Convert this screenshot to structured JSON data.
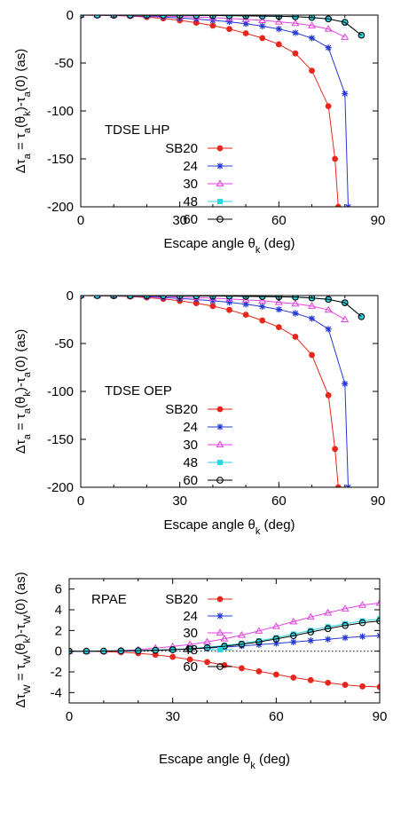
{
  "chart_data": [
    {
      "type": "line",
      "title": "",
      "xlabel": "Escape angle θk (deg)",
      "ylabel": "Δτa = τa(θk)-τa(0) (as)",
      "xlim": [
        0,
        90
      ],
      "ylim": [
        -200,
        0
      ],
      "xticks": [
        "0",
        "30",
        "60",
        "90"
      ],
      "yticks": [
        "0",
        "-50",
        "-100",
        "-150",
        "-200"
      ],
      "legend_title": "TDSE LHP",
      "legend_position": "bottom-left",
      "grid": false,
      "series": [
        {
          "name": "SB20",
          "color": "#e8261c",
          "marker": "dot",
          "x": [
            0,
            5,
            10,
            15,
            20,
            25,
            30,
            35,
            40,
            45,
            50,
            55,
            60,
            65,
            70,
            75,
            77,
            78
          ],
          "y": [
            0,
            -0.2,
            -0.5,
            -1.0,
            -2.0,
            -3.5,
            -5.5,
            -8,
            -11,
            -14.5,
            -19,
            -24,
            -30.5,
            -40,
            -58,
            -95,
            -150,
            -200
          ]
        },
        {
          "name": "24",
          "color": "#2538d6",
          "marker": "star",
          "x": [
            0,
            5,
            10,
            15,
            20,
            25,
            30,
            35,
            40,
            45,
            50,
            55,
            60,
            65,
            70,
            75,
            80,
            81
          ],
          "y": [
            0,
            -0.1,
            -0.3,
            -0.6,
            -1.2,
            -2.0,
            -3.0,
            -4.2,
            -5.5,
            -7,
            -9,
            -11.5,
            -14.5,
            -18.5,
            -24,
            -34,
            -82,
            -200
          ]
        },
        {
          "name": "30",
          "color": "#e040e0",
          "marker": "triangle",
          "x": [
            0,
            5,
            10,
            15,
            20,
            25,
            30,
            35,
            40,
            45,
            50,
            55,
            60,
            65,
            70,
            75,
            80
          ],
          "y": [
            0,
            -0.05,
            -0.15,
            -0.3,
            -0.6,
            -1.0,
            -1.5,
            -2.0,
            -2.7,
            -3.5,
            -4.5,
            -5.5,
            -7,
            -8.5,
            -11,
            -14.5,
            -23
          ]
        },
        {
          "name": "48",
          "color": "#26d6e0",
          "marker": "square",
          "x": [
            0,
            5,
            10,
            15,
            20,
            25,
            30,
            35,
            40,
            45,
            50,
            55,
            60,
            65,
            70,
            75,
            80,
            85
          ],
          "y": [
            0,
            0,
            -0.05,
            -0.1,
            -0.15,
            -0.2,
            -0.3,
            -0.4,
            -0.5,
            -0.6,
            -0.8,
            -1.0,
            -1.3,
            -1.7,
            -2.5,
            -4,
            -7.5,
            -21
          ]
        },
        {
          "name": "60",
          "color": "#000000",
          "marker": "circle",
          "x": [
            0,
            5,
            10,
            15,
            20,
            25,
            30,
            35,
            40,
            45,
            50,
            55,
            60,
            65,
            70,
            75,
            80,
            85
          ],
          "y": [
            0,
            0,
            -0.05,
            -0.1,
            -0.15,
            -0.2,
            -0.3,
            -0.4,
            -0.5,
            -0.6,
            -0.8,
            -1.0,
            -1.3,
            -1.7,
            -2.5,
            -4,
            -7.5,
            -21
          ]
        }
      ]
    },
    {
      "type": "line",
      "title": "",
      "xlabel": "Escape angle θk (deg)",
      "ylabel": "Δτa = τa(θk)-τa(0) (as)",
      "xlim": [
        0,
        90
      ],
      "ylim": [
        -200,
        0
      ],
      "xticks": [
        "0",
        "30",
        "60",
        "90"
      ],
      "yticks": [
        "0",
        "-50",
        "-100",
        "-150",
        "-200"
      ],
      "legend_title": "TDSE OEP",
      "legend_position": "bottom-left",
      "grid": false,
      "series": [
        {
          "name": "SB20",
          "color": "#e8261c",
          "marker": "dot",
          "x": [
            0,
            5,
            10,
            15,
            20,
            25,
            30,
            35,
            40,
            45,
            50,
            55,
            60,
            65,
            70,
            75,
            77,
            78
          ],
          "y": [
            0,
            -0.2,
            -0.5,
            -1.0,
            -2.0,
            -3.5,
            -5.5,
            -8,
            -11,
            -15,
            -20,
            -26,
            -33,
            -43,
            -62,
            -104,
            -160,
            -200
          ]
        },
        {
          "name": "24",
          "color": "#2538d6",
          "marker": "star",
          "x": [
            0,
            5,
            10,
            15,
            20,
            25,
            30,
            35,
            40,
            45,
            50,
            55,
            60,
            65,
            70,
            75,
            80,
            81
          ],
          "y": [
            0,
            -0.1,
            -0.3,
            -0.6,
            -1.2,
            -2.0,
            -3.0,
            -4.2,
            -5.5,
            -7,
            -9,
            -11.5,
            -14.5,
            -18.5,
            -24,
            -35,
            -92,
            -200
          ]
        },
        {
          "name": "30",
          "color": "#e040e0",
          "marker": "triangle",
          "x": [
            0,
            5,
            10,
            15,
            20,
            25,
            30,
            35,
            40,
            45,
            50,
            55,
            60,
            65,
            70,
            75,
            80
          ],
          "y": [
            0,
            -0.05,
            -0.15,
            -0.3,
            -0.6,
            -1.0,
            -1.5,
            -2.0,
            -2.7,
            -3.5,
            -4.5,
            -5.5,
            -7,
            -8.5,
            -11,
            -15,
            -25
          ]
        },
        {
          "name": "48",
          "color": "#26d6e0",
          "marker": "square",
          "x": [
            0,
            5,
            10,
            15,
            20,
            25,
            30,
            35,
            40,
            45,
            50,
            55,
            60,
            65,
            70,
            75,
            80,
            85
          ],
          "y": [
            0,
            0,
            -0.05,
            -0.1,
            -0.15,
            -0.2,
            -0.3,
            -0.4,
            -0.5,
            -0.6,
            -0.8,
            -1.0,
            -1.3,
            -1.7,
            -2.5,
            -4,
            -7.5,
            -22
          ]
        },
        {
          "name": "60",
          "color": "#000000",
          "marker": "circle",
          "x": [
            0,
            5,
            10,
            15,
            20,
            25,
            30,
            35,
            40,
            45,
            50,
            55,
            60,
            65,
            70,
            75,
            80,
            85
          ],
          "y": [
            0,
            0,
            -0.05,
            -0.1,
            -0.15,
            -0.2,
            -0.3,
            -0.4,
            -0.5,
            -0.6,
            -0.8,
            -1.0,
            -1.3,
            -1.7,
            -2.5,
            -4,
            -7.5,
            -22
          ]
        }
      ]
    },
    {
      "type": "line",
      "title": "",
      "xlabel": "Escape angle θk (deg)",
      "ylabel": "ΔτW = τW(θk)-τW(0) (as)",
      "xlim": [
        0,
        90
      ],
      "ylim": [
        -5,
        7
      ],
      "xticks": [
        "0",
        "30",
        "60",
        "90"
      ],
      "yticks": [
        "6",
        "4",
        "2",
        "0",
        "-2",
        "-4"
      ],
      "legend_title": "RPAE",
      "legend_position": "top-left",
      "zero_line": true,
      "grid": false,
      "series": [
        {
          "name": "SB20",
          "color": "#e8261c",
          "marker": "dot",
          "x": [
            0,
            5,
            10,
            15,
            20,
            25,
            30,
            35,
            40,
            45,
            50,
            55,
            60,
            65,
            70,
            75,
            80,
            85,
            90
          ],
          "y": [
            0,
            -0.01,
            -0.05,
            -0.1,
            -0.2,
            -0.35,
            -0.55,
            -0.8,
            -1.05,
            -1.35,
            -1.65,
            -1.95,
            -2.25,
            -2.55,
            -2.8,
            -3.05,
            -3.25,
            -3.4,
            -3.45
          ]
        },
        {
          "name": "24",
          "color": "#2538d6",
          "marker": "star",
          "x": [
            0,
            5,
            10,
            15,
            20,
            25,
            30,
            35,
            40,
            45,
            50,
            55,
            60,
            65,
            70,
            75,
            80,
            85,
            90
          ],
          "y": [
            0,
            0,
            0.01,
            0.02,
            0.05,
            0.1,
            0.15,
            0.22,
            0.3,
            0.4,
            0.5,
            0.62,
            0.75,
            0.88,
            1.02,
            1.15,
            1.3,
            1.42,
            1.5
          ]
        },
        {
          "name": "30",
          "color": "#e040e0",
          "marker": "triangle",
          "x": [
            0,
            5,
            10,
            15,
            20,
            25,
            30,
            35,
            40,
            45,
            50,
            55,
            60,
            65,
            70,
            75,
            80,
            85,
            90
          ],
          "y": [
            0,
            0,
            0.02,
            0.05,
            0.15,
            0.3,
            0.45,
            0.65,
            0.9,
            1.2,
            1.55,
            1.95,
            2.4,
            2.85,
            3.3,
            3.7,
            4.1,
            4.45,
            4.65
          ]
        },
        {
          "name": "48",
          "color": "#26d6e0",
          "marker": "square",
          "x": [
            0,
            5,
            10,
            15,
            20,
            25,
            30,
            35,
            40,
            45,
            50,
            55,
            60,
            65,
            70,
            75,
            80,
            85,
            90
          ],
          "y": [
            0,
            0,
            0.01,
            0.03,
            0.06,
            0.1,
            0.16,
            0.25,
            0.38,
            0.55,
            0.75,
            1.0,
            1.3,
            1.65,
            2.0,
            2.35,
            2.65,
            2.92,
            3.1
          ]
        },
        {
          "name": "60",
          "color": "#000000",
          "marker": "circle",
          "x": [
            0,
            5,
            10,
            15,
            20,
            25,
            30,
            35,
            40,
            45,
            50,
            55,
            60,
            65,
            70,
            75,
            80,
            85,
            90
          ],
          "y": [
            0,
            0,
            0.01,
            0.03,
            0.05,
            0.09,
            0.14,
            0.22,
            0.33,
            0.48,
            0.67,
            0.9,
            1.18,
            1.5,
            1.85,
            2.18,
            2.48,
            2.75,
            2.92
          ]
        }
      ]
    }
  ]
}
